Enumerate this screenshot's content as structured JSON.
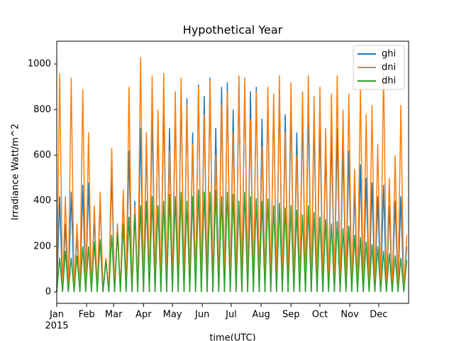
{
  "chart_data": {
    "type": "line",
    "title": "Hypothetical Year",
    "x_label": "time(UTC)",
    "y_label": "Irradiance Watt/m^2",
    "x_year": "2015",
    "x": [
      0,
      3,
      6,
      9,
      12,
      15,
      18,
      21,
      24,
      27,
      30,
      33,
      36,
      39,
      42,
      45,
      48,
      51,
      54,
      57,
      60,
      63,
      66,
      69,
      72,
      75,
      78,
      81,
      84,
      87,
      90,
      93,
      96,
      99,
      102,
      105,
      108,
      111,
      114,
      117,
      120,
      123,
      126,
      129,
      132,
      135,
      138,
      141,
      144,
      147,
      150,
      153,
      156,
      159,
      162,
      165,
      168,
      171,
      174,
      177,
      180,
      183,
      186,
      189,
      192,
      195,
      198,
      201,
      204,
      207,
      210,
      213,
      216,
      219,
      222,
      225,
      228,
      231,
      234,
      237,
      240,
      243,
      246,
      249,
      252,
      255,
      258,
      261,
      264,
      267,
      270,
      273,
      276,
      279,
      282,
      285,
      288,
      291,
      294,
      297,
      300,
      303,
      306,
      309,
      312,
      315,
      318,
      321,
      324,
      327,
      330,
      333,
      336,
      339,
      342,
      345,
      348,
      351,
      354,
      357,
      360,
      363
    ],
    "series": [
      {
        "name": "ghi",
        "color": "#1f77b4",
        "values": [
          0,
          420,
          0,
          300,
          0,
          440,
          0,
          250,
          0,
          470,
          0,
          480,
          0,
          330,
          0,
          400,
          0,
          140,
          0,
          520,
          0,
          300,
          0,
          420,
          0,
          620,
          0,
          400,
          0,
          720,
          0,
          650,
          0,
          780,
          0,
          760,
          0,
          840,
          0,
          720,
          0,
          820,
          0,
          880,
          0,
          850,
          0,
          700,
          0,
          910,
          0,
          860,
          0,
          940,
          0,
          720,
          0,
          900,
          0,
          920,
          0,
          800,
          0,
          930,
          0,
          920,
          0,
          880,
          0,
          900,
          0,
          760,
          0,
          860,
          0,
          840,
          0,
          880,
          0,
          780,
          0,
          820,
          0,
          700,
          0,
          780,
          0,
          820,
          0,
          760,
          0,
          760,
          0,
          640,
          0,
          700,
          0,
          720,
          0,
          640,
          0,
          620,
          0,
          450,
          0,
          560,
          0,
          500,
          0,
          480,
          0,
          420,
          0,
          470,
          0,
          380,
          0,
          400,
          0,
          420,
          0,
          200
        ]
      },
      {
        "name": "dni",
        "color": "#ff7f0e",
        "values": [
          0,
          960,
          0,
          420,
          0,
          940,
          0,
          300,
          0,
          890,
          0,
          700,
          0,
          380,
          0,
          440,
          0,
          150,
          0,
          630,
          0,
          300,
          0,
          450,
          0,
          900,
          0,
          380,
          0,
          1030,
          0,
          700,
          0,
          950,
          0,
          800,
          0,
          960,
          0,
          620,
          0,
          880,
          0,
          940,
          0,
          820,
          0,
          650,
          0,
          900,
          0,
          780,
          0,
          930,
          0,
          600,
          0,
          820,
          0,
          880,
          0,
          700,
          0,
          950,
          0,
          940,
          0,
          760,
          0,
          880,
          0,
          640,
          0,
          900,
          0,
          870,
          0,
          950,
          0,
          700,
          0,
          920,
          0,
          600,
          0,
          880,
          0,
          950,
          0,
          860,
          0,
          900,
          0,
          720,
          0,
          870,
          0,
          950,
          0,
          800,
          0,
          870,
          0,
          540,
          0,
          900,
          0,
          780,
          0,
          820,
          0,
          650,
          0,
          980,
          0,
          500,
          0,
          600,
          0,
          820,
          0,
          250
        ]
      },
      {
        "name": "dhi",
        "color": "#2ca02c",
        "values": [
          0,
          150,
          0,
          180,
          0,
          150,
          0,
          160,
          0,
          200,
          0,
          200,
          0,
          220,
          0,
          230,
          0,
          140,
          0,
          250,
          0,
          260,
          0,
          300,
          0,
          330,
          0,
          340,
          0,
          380,
          0,
          400,
          0,
          420,
          0,
          380,
          0,
          400,
          0,
          430,
          0,
          420,
          0,
          440,
          0,
          400,
          0,
          420,
          0,
          450,
          0,
          440,
          0,
          440,
          0,
          450,
          0,
          420,
          0,
          440,
          0,
          430,
          0,
          400,
          0,
          440,
          0,
          420,
          0,
          410,
          0,
          400,
          0,
          410,
          0,
          380,
          0,
          390,
          0,
          370,
          0,
          380,
          0,
          360,
          0,
          340,
          0,
          380,
          0,
          350,
          0,
          330,
          0,
          320,
          0,
          300,
          0,
          310,
          0,
          280,
          0,
          290,
          0,
          250,
          0,
          240,
          0,
          220,
          0,
          210,
          0,
          200,
          0,
          180,
          0,
          170,
          0,
          160,
          0,
          150,
          0,
          140
        ]
      }
    ],
    "xlim": [
      0,
      365
    ],
    "xticks": [
      {
        "value": 0,
        "label": "Jan"
      },
      {
        "value": 31,
        "label": "Feb"
      },
      {
        "value": 59,
        "label": "Mar"
      },
      {
        "value": 90,
        "label": "Apr"
      },
      {
        "value": 120,
        "label": "May"
      },
      {
        "value": 151,
        "label": "Jun"
      },
      {
        "value": 181,
        "label": "Jul"
      },
      {
        "value": 212,
        "label": "Aug"
      },
      {
        "value": 243,
        "label": "Sep"
      },
      {
        "value": 273,
        "label": "Oct"
      },
      {
        "value": 304,
        "label": "Nov"
      },
      {
        "value": 334,
        "label": "Dec"
      }
    ],
    "ylim": [
      -50,
      1100
    ],
    "yticks": [
      0,
      200,
      400,
      600,
      800,
      1000
    ],
    "legend": "upper right"
  }
}
